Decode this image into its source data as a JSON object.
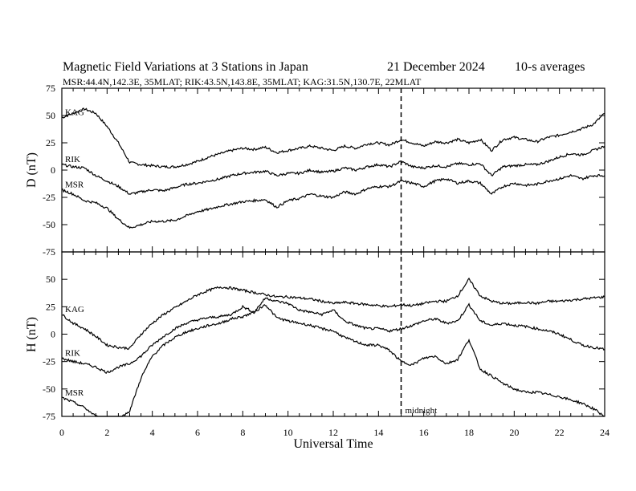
{
  "chart_data": {
    "type": "line",
    "title": "Magnetic Field Variations at 3 Stations in Japan",
    "date": "21 December 2024",
    "averaging": "10-s averages",
    "subtitle": "MSR:44.4N,142.3E, 35MLAT;  RIK:43.5N,143.8E, 35MLAT;  KAG:31.5N,130.7E, 22MLAT",
    "xlabel": "Universal Time",
    "xlim": [
      0,
      24
    ],
    "xticks": [
      0,
      2,
      4,
      6,
      8,
      10,
      12,
      14,
      16,
      18,
      20,
      22,
      24
    ],
    "x": [
      0,
      0.5,
      1,
      1.5,
      2,
      2.5,
      3,
      3.5,
      4,
      4.5,
      5,
      5.5,
      6,
      6.5,
      7,
      7.5,
      8,
      8.5,
      9,
      9.5,
      10,
      10.5,
      11,
      11.5,
      12,
      12.5,
      13,
      13.5,
      14,
      14.5,
      15,
      15.5,
      16,
      16.5,
      17,
      17.5,
      18,
      18.5,
      19,
      19.5,
      20,
      20.5,
      21,
      21.5,
      22,
      22.5,
      23,
      23.5,
      24
    ],
    "panels": [
      {
        "ylabel": "D (nT)",
        "ylim": [
          -75,
          75
        ],
        "yticks": [
          75,
          50,
          25,
          0,
          -25,
          -50,
          -75
        ],
        "series": [
          {
            "name": "KAG",
            "values": [
              48,
              52,
              56,
              52,
              40,
              25,
              7,
              5,
              4,
              3,
              3,
              5,
              8,
              12,
              15,
              18,
              20,
              19,
              21,
              16,
              18,
              20,
              22,
              20,
              18,
              22,
              20,
              24,
              25,
              23,
              28,
              25,
              22,
              26,
              25,
              28,
              25,
              28,
              18,
              28,
              30,
              28,
              26,
              30,
              32,
              35,
              38,
              42,
              52
            ]
          },
          {
            "name": "RIK",
            "values": [
              5,
              3,
              2,
              -5,
              -10,
              -15,
              -22,
              -20,
              -18,
              -19,
              -16,
              -13,
              -12,
              -10,
              -8,
              -5,
              -3,
              -2,
              -1,
              -5,
              -3,
              -3,
              0,
              -2,
              -1,
              2,
              0,
              3,
              5,
              3,
              8,
              3,
              2,
              4,
              3,
              6,
              5,
              6,
              -5,
              3,
              4,
              5,
              5,
              8,
              12,
              15,
              14,
              18,
              22
            ]
          },
          {
            "name": "MSR",
            "values": [
              -18,
              -22,
              -28,
              -30,
              -35,
              -45,
              -53,
              -50,
              -47,
              -47,
              -46,
              -42,
              -38,
              -36,
              -33,
              -31,
              -29,
              -28,
              -27,
              -34,
              -28,
              -26,
              -22,
              -24,
              -25,
              -20,
              -22,
              -17,
              -15,
              -15,
              -10,
              -12,
              -15,
              -10,
              -8,
              -12,
              -10,
              -12,
              -22,
              -15,
              -12,
              -14,
              -13,
              -10,
              -8,
              -5,
              -8,
              -5,
              -5
            ]
          }
        ]
      },
      {
        "ylabel": "H (nT)",
        "ylim": [
          -75,
          75
        ],
        "yticks": [
          50,
          25,
          0,
          -25,
          -50,
          -75
        ],
        "series": [
          {
            "name": "KAG",
            "values": [
              18,
              10,
              5,
              -2,
              -10,
              -12,
              -13,
              0,
              10,
              18,
              24,
              30,
              36,
              40,
              43,
              42,
              40,
              38,
              36,
              34,
              34,
              33,
              32,
              30,
              28,
              29,
              28,
              27,
              26,
              25,
              27,
              26,
              28,
              30,
              30,
              35,
              50,
              35,
              30,
              28,
              28,
              29,
              28,
              30,
              30,
              31,
              32,
              33,
              34
            ]
          },
          {
            "name": "RIK",
            "values": [
              -22,
              -25,
              -27,
              -30,
              -35,
              -30,
              -27,
              -20,
              -10,
              -2,
              5,
              10,
              13,
              15,
              16,
              18,
              25,
              20,
              33,
              30,
              28,
              22,
              20,
              18,
              22,
              12,
              8,
              5,
              5,
              3,
              5,
              8,
              12,
              14,
              10,
              12,
              27,
              12,
              8,
              10,
              8,
              7,
              5,
              3,
              0,
              -5,
              -10,
              -12,
              -14
            ]
          },
          {
            "name": "MSR",
            "values": [
              -58,
              -62,
              -67,
              -75,
              -77,
              -78,
              -70,
              -40,
              -20,
              -10,
              -3,
              2,
              5,
              8,
              10,
              14,
              16,
              20,
              27,
              15,
              12,
              10,
              8,
              5,
              3,
              -3,
              -7,
              -10,
              -10,
              -15,
              -25,
              -28,
              -22,
              -20,
              -27,
              -23,
              -5,
              -32,
              -38,
              -45,
              -50,
              -53,
              -53,
              -55,
              -57,
              -60,
              -63,
              -68,
              -75
            ]
          }
        ]
      }
    ],
    "annotations": [
      {
        "text": "midnight",
        "x": 15
      }
    ],
    "grid": false
  }
}
